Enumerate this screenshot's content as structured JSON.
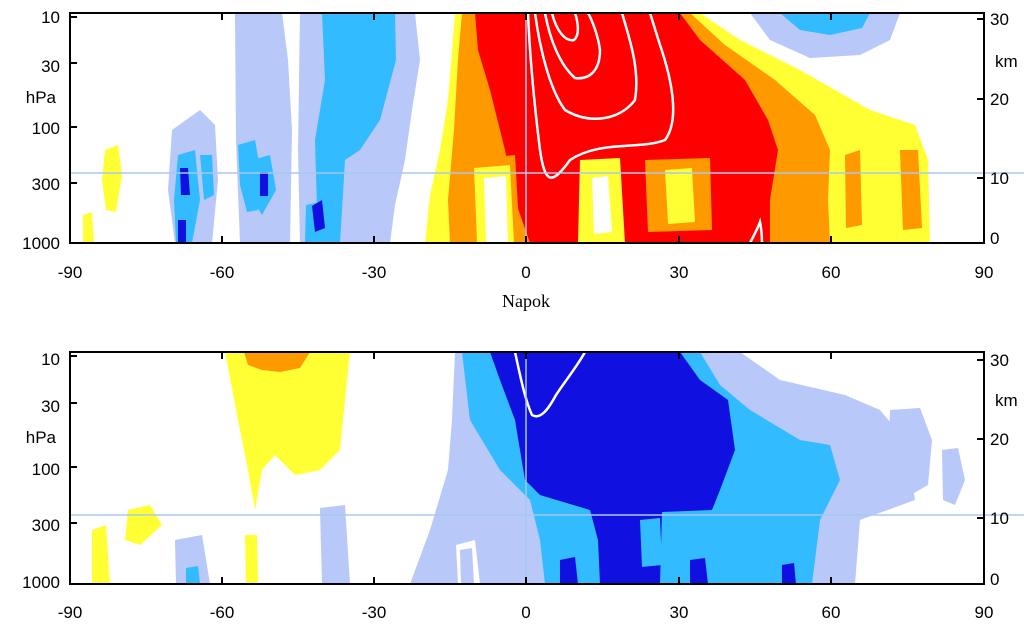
{
  "colors": {
    "warm_yellow": "#ffff33",
    "warm_orange": "#ff9900",
    "warm_red": "#ff0000",
    "cool_light": "#b8c8f8",
    "cool_mid": "#33bbff",
    "cool_dark": "#1010e0",
    "contour": "#ffffff",
    "reference_line": "#a8c8f0",
    "axis": "#000000"
  },
  "shared_xlabel": "Napok",
  "chart_data": [
    {
      "type": "heatmap",
      "panel": "top",
      "xlabel": "Napok",
      "x_ticks": [
        "-90",
        "-60",
        "-30",
        "0",
        "30",
        "60",
        "90"
      ],
      "xlim": [
        -90,
        90
      ],
      "y_left_label": "hPa",
      "y_left_ticks": [
        "10",
        "30",
        "100",
        "300",
        "1000"
      ],
      "y_right_label": "km",
      "y_right_ticks": [
        "30",
        "20",
        "10",
        "0"
      ],
      "ylim_hpa": [
        1000,
        10
      ],
      "y_scale": "log",
      "reference_lines": {
        "x_day": 0,
        "pressure_hpa": 300
      },
      "warm_anomaly": {
        "onset_day": -20,
        "peak_day": 15,
        "fade_day": 80
      },
      "cool_bands_days": [
        -70,
        -55,
        -40
      ]
    },
    {
      "type": "heatmap",
      "panel": "bottom",
      "xlabel": "",
      "x_ticks": [
        "-90",
        "-60",
        "-30",
        "0",
        "30",
        "60",
        "90"
      ],
      "xlim": [
        -90,
        90
      ],
      "y_left_label": "hPa",
      "y_left_ticks": [
        "10",
        "30",
        "100",
        "300",
        "1000"
      ],
      "y_right_label": "km",
      "y_right_ticks": [
        "30",
        "20",
        "10",
        "0"
      ],
      "ylim_hpa": [
        1000,
        10
      ],
      "y_scale": "log",
      "reference_lines": {
        "x_day": 0,
        "pressure_hpa": 300
      },
      "cool_anomaly": {
        "onset_day": -10,
        "peak_day": 15,
        "fade_day": 65
      },
      "warm_band_days": [
        -60,
        -35
      ]
    }
  ]
}
